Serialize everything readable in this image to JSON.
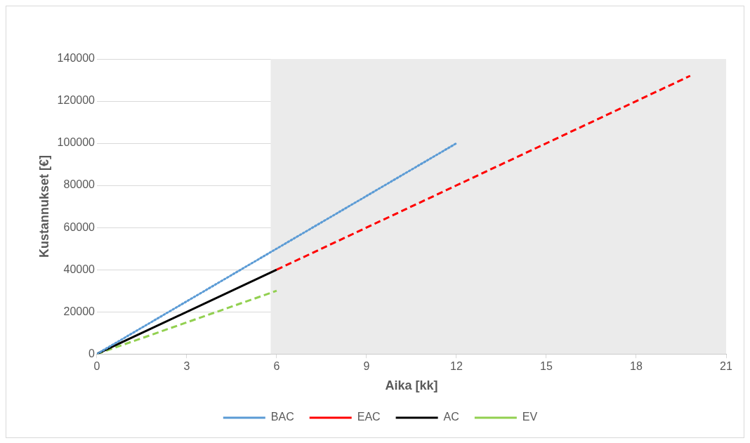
{
  "chart_data": {
    "type": "line",
    "xlabel": "Aika [kk]",
    "ylabel": "Kustannukset [€]",
    "xlim": [
      0,
      21
    ],
    "xticks": [
      0,
      3,
      6,
      9,
      12,
      15,
      18,
      21
    ],
    "ylim": [
      0,
      140000
    ],
    "yticks": [
      0,
      20000,
      40000,
      60000,
      80000,
      100000,
      120000,
      140000
    ],
    "grid": "y",
    "legend": "bottom",
    "marker": "none",
    "bands": [
      {
        "axis": "x",
        "from": 5.8,
        "to": 21,
        "color": "#ebebeb"
      }
    ],
    "series": [
      {
        "name": "BAC",
        "color": "#5b9bd5",
        "line_style": "dotted",
        "x": [
          0,
          12
        ],
        "values": [
          0,
          100000
        ]
      },
      {
        "name": "EAC",
        "color": "#ff0000",
        "line_style": "dashed",
        "x": [
          6,
          19.8
        ],
        "values": [
          40000,
          132000
        ]
      },
      {
        "name": "AC",
        "color": "#000000",
        "line_style": "solid",
        "x": [
          0,
          6
        ],
        "values": [
          0,
          40000
        ]
      },
      {
        "name": "EV",
        "color": "#92d050",
        "line_style": "dashed",
        "x": [
          0,
          6
        ],
        "values": [
          0,
          30000
        ]
      }
    ]
  }
}
